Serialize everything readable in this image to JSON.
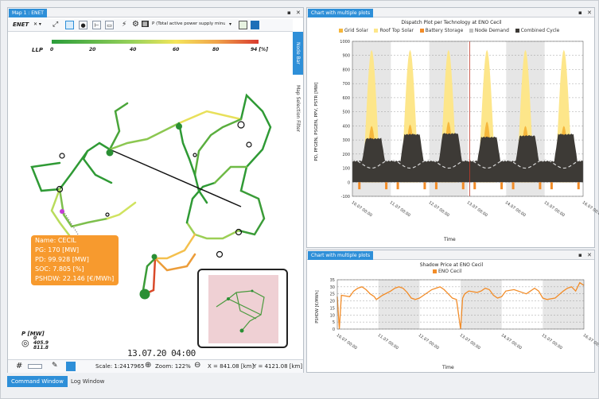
{
  "map_panel": {
    "tab": "Map 1 : ENET",
    "network": "ENET",
    "measure": "P (Total active power supply minu",
    "llp_label": "LLP",
    "llp_ticks": [
      "0",
      "20",
      "40",
      "60",
      "80",
      "94 [%]"
    ],
    "side_tabs": [
      "Node Bar",
      "Map Selection Filter"
    ],
    "info": {
      "name": "Name: CECIL",
      "pg": "PG: 170 [MW]",
      "pd": "PD: 99.928 [MW]",
      "soc": "SOC: 7.805 [%]",
      "pshdw": "PSHDW: 22.146 [€/MWh]"
    },
    "p_legend": {
      "title": "P [MW]",
      "v0": "0",
      "v1": "405.9",
      "v2": "811.8"
    },
    "clock": "13.07.20 04:00",
    "scale": "Scale: 1:2417965",
    "zoom": "Zoom: 122%",
    "x": "X = 841.08 [km]",
    "y": "Y = 4121.08 [km]"
  },
  "chart1": {
    "tab": "Chart with multiple plots"
  },
  "chart2": {
    "tab": "Chart with multiple plots"
  },
  "bottom_tabs": [
    "Command Window",
    "Log Window"
  ],
  "colors": {
    "accent": "#2e8fd8",
    "grid_solar": "#f6b73c",
    "rooftop": "#fde68a",
    "battery": "#f28c28",
    "demand": "#c0c0c0",
    "cc": "#3d3a36"
  },
  "chart_data": [
    {
      "type": "area",
      "title": "Dispatch Plot per Technology at ENO Cecil",
      "ylabel": "PD, PFGEN, PSGEN, PPV, PSTR [MW]",
      "xlabel": "Time",
      "ylim": [
        -100,
        1000
      ],
      "yticks": [
        -100,
        0,
        100,
        200,
        300,
        400,
        500,
        600,
        700,
        800,
        900,
        1000
      ],
      "xticks": [
        "10.07 00:00",
        "11.07 00:00",
        "12.07 00:00",
        "13.07 00:00",
        "14.07 00:00",
        "15.07 00:00",
        "16.07 00:00"
      ],
      "series": [
        {
          "name": "Grid Solar",
          "peak": [
            400,
            410,
            430,
            430,
            400,
            400
          ]
        },
        {
          "name": "Roof Top Solar",
          "peak": [
            940,
            940,
            940,
            940,
            940,
            940
          ]
        },
        {
          "name": "Battery Storage",
          "night": [
            -50,
            -50,
            -50,
            -50,
            -50,
            -50
          ]
        },
        {
          "name": "Node Demand",
          "range": [
            100,
            160
          ]
        },
        {
          "name": "Combined Cycle",
          "level": [
            310,
            340,
            345,
            320,
            330,
            340
          ]
        }
      ]
    },
    {
      "type": "line",
      "title": "Shadow Price at ENO Cecil",
      "ylabel": "PSHDW [€/MWh]",
      "xlabel": "Time",
      "ylim": [
        0,
        35
      ],
      "yticks": [
        0,
        5,
        10,
        15,
        20,
        25,
        30,
        35
      ],
      "xticks": [
        "10.07 00:00",
        "11.07 00:00",
        "12.07 00:00",
        "13.07 00:00",
        "14.07 00:00",
        "15.07 00:00",
        "16.07 00:00"
      ],
      "series": [
        {
          "name": "ENO Cecil",
          "x": [
            0,
            0.05,
            0.1,
            0.3,
            0.4,
            0.5,
            0.6,
            0.7,
            0.8,
            0.9,
            0.95,
            1,
            1.1,
            1.3,
            1.4,
            1.5,
            1.6,
            1.7,
            1.8,
            1.9,
            2,
            2.1,
            2.3,
            2.4,
            2.5,
            2.6,
            2.7,
            2.8,
            2.9,
            3,
            3.05,
            3.1,
            3.2,
            3.4,
            3.5,
            3.6,
            3.7,
            3.8,
            3.9,
            4,
            4.1,
            4.3,
            4.5,
            4.6,
            4.7,
            4.8,
            4.9,
            5,
            5.1,
            5.3,
            5.5,
            5.6,
            5.7,
            5.8,
            5.9,
            6
          ],
          "y": [
            23,
            0,
            24,
            23,
            27,
            29,
            30,
            28,
            25,
            23,
            21,
            22,
            24,
            27,
            29,
            30,
            29,
            26,
            22,
            21,
            22,
            24,
            28,
            29,
            30,
            28,
            25,
            22,
            21,
            0,
            22,
            25,
            27,
            26,
            27,
            29,
            28,
            24,
            22,
            23,
            27,
            28,
            26,
            25,
            27,
            29,
            27,
            22,
            21,
            22,
            27,
            29,
            30,
            27,
            33,
            31
          ]
        }
      ]
    }
  ]
}
